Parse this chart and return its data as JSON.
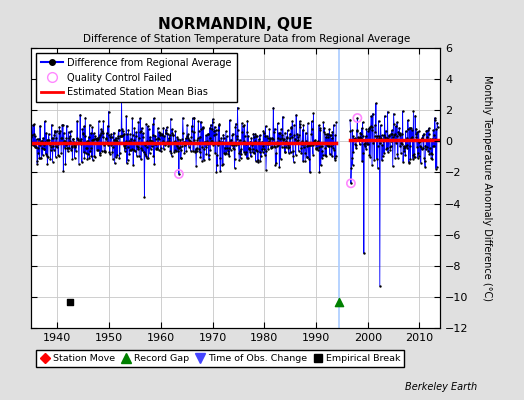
{
  "title": "NORMANDIN, QUE",
  "subtitle": "Difference of Station Temperature Data from Regional Average",
  "ylabel": "Monthly Temperature Anomaly Difference (°C)",
  "ylim": [
    -12,
    6
  ],
  "yticks": [
    -12,
    -10,
    -8,
    -6,
    -4,
    -2,
    0,
    2,
    4,
    6
  ],
  "xticks": [
    1940,
    1950,
    1960,
    1970,
    1980,
    1990,
    2000,
    2010
  ],
  "xlim": [
    1935,
    2014
  ],
  "data_color": "#0000FF",
  "bias_color": "#FF0000",
  "qc_color": "#FF88FF",
  "gap_line_color": "#AACCFF",
  "background_color": "#E0E0E0",
  "plot_bg_color": "#FFFFFF",
  "grid_color": "#C8C8C8",
  "seed": 42,
  "seg1_start": 1935.0,
  "seg1_end": 1993.917,
  "seg2_start": 1996.583,
  "seg2_end": 2013.5,
  "gap_line_x": 1994.5,
  "bias1_y": -0.08,
  "bias2_y": 0.1,
  "qc_points": [
    [
      1963.5,
      -2.1
    ],
    [
      1996.75,
      -2.7
    ],
    [
      1998.0,
      1.5
    ]
  ],
  "outlier1_x": 1999.25,
  "outlier1_y": -7.2,
  "outlier2_x": 2002.33,
  "outlier2_y": -9.3,
  "empirical_break_x": 1942.5,
  "empirical_break_y": -10.3,
  "record_gap_x": 1994.5,
  "record_gap_y": -10.3,
  "berkeley_earth_text": "Berkeley Earth"
}
